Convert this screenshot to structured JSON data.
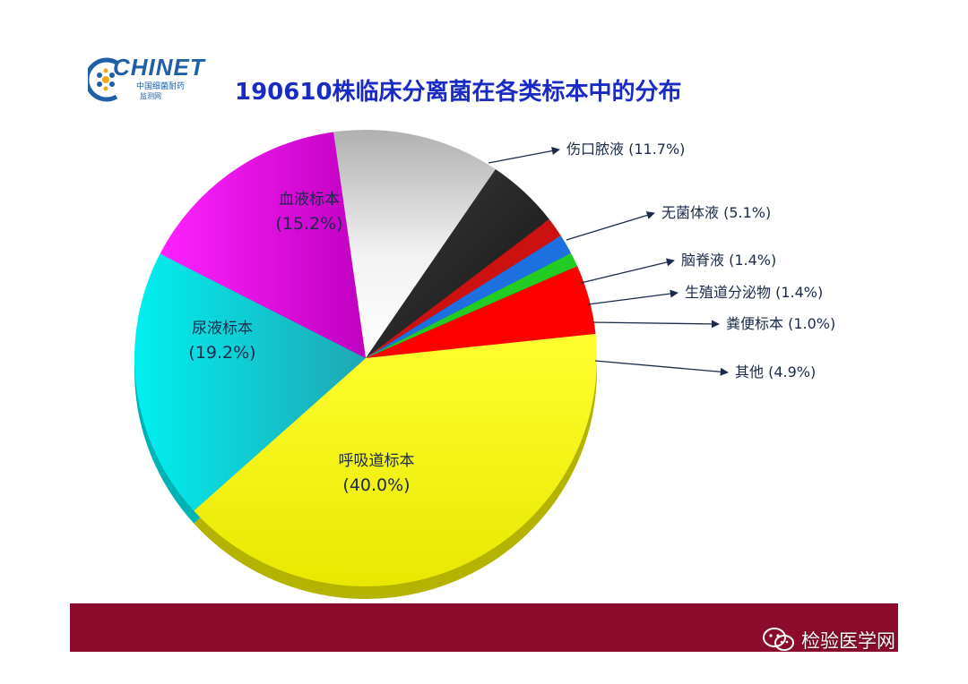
{
  "logo": {
    "text": "CHINET",
    "subtitle": "中国细菌耐药",
    "subtitle2": "监测网",
    "accent": "#1f5fa8"
  },
  "watermark": {
    "text": "检验医学网",
    "icon": "wechat-icon"
  },
  "colors": {
    "title": "#1a2bc4",
    "bottom_bar": "#8c0a2c",
    "label_text": "#1a2a4a"
  },
  "chart_data": {
    "type": "pie",
    "title": "190610株临床分离菌在各类标本中的分布",
    "slices": [
      {
        "name": "呼吸道标本",
        "percent_label": "(40.0%)",
        "value": 40.0,
        "color": "#ffff00",
        "label": "inside"
      },
      {
        "name": "尿液标本",
        "percent_label": "(19.2%)",
        "value": 19.2,
        "color": "#00ffff",
        "label": "inside"
      },
      {
        "name": "血液标本",
        "percent_label": "(15.2%)",
        "value": 15.2,
        "color": "#ff00ff",
        "label": "inside"
      },
      {
        "name": "伤口脓液",
        "percent_label": "(11.7%)",
        "value": 11.7,
        "color": "#e6e6e6",
        "label": "outside"
      },
      {
        "name": "无菌体液",
        "percent_label": "(5.1%)",
        "value": 5.1,
        "color": "#2a2a2a",
        "label": "outside"
      },
      {
        "name": "脑脊液",
        "percent_label": "(1.4%)",
        "value": 1.4,
        "color": "#cc1111",
        "label": "outside"
      },
      {
        "name": "生殖道分泌物",
        "percent_label": "(1.4%)",
        "value": 1.4,
        "color": "#1e6fe0",
        "label": "outside"
      },
      {
        "name": "粪便标本",
        "percent_label": "(1.0%)",
        "value": 1.0,
        "color": "#22cc22",
        "label": "outside"
      },
      {
        "name": "其他",
        "percent_label": "(4.9%)",
        "value": 4.9,
        "color": "#ff0000",
        "label": "outside"
      }
    ],
    "legend": "none"
  }
}
